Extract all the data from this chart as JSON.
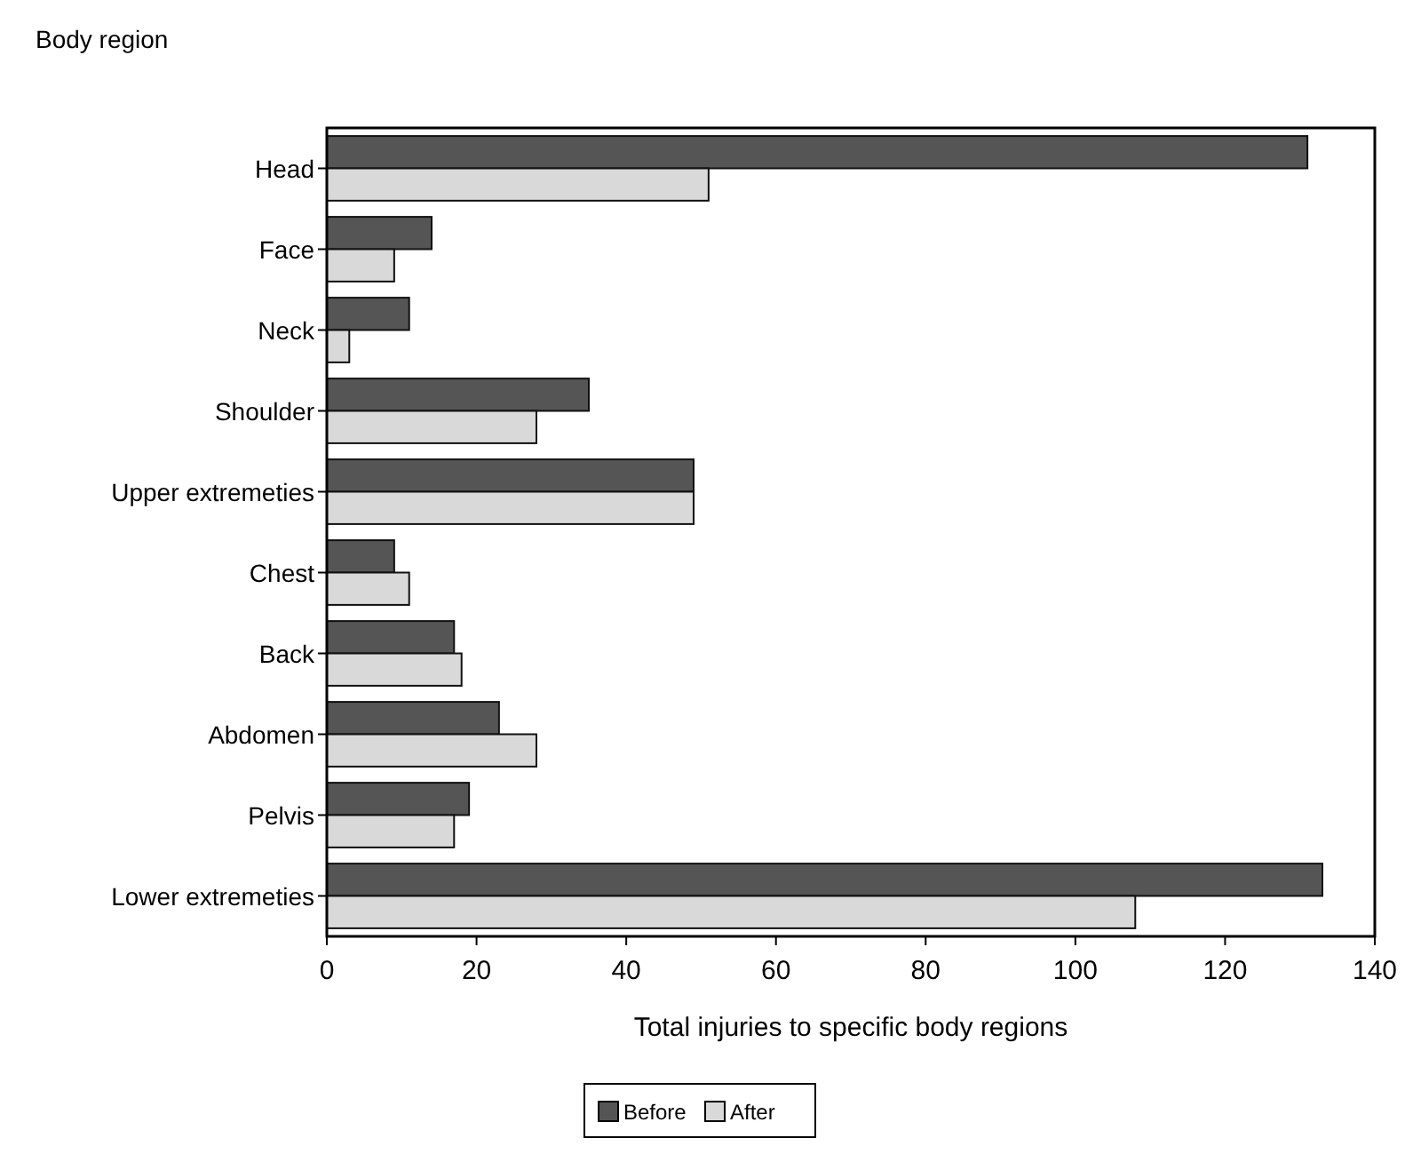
{
  "chart_data": {
    "type": "bar",
    "orientation": "horizontal",
    "ylabel": "Body region",
    "xlabel": "Total injuries to specific body regions",
    "categories": [
      "Head",
      "Face",
      "Neck",
      "Shoulder",
      "Upper extremeties",
      "Chest",
      "Back",
      "Abdomen",
      "Pelvis",
      "Lower extremeties"
    ],
    "series": [
      {
        "name": "Before",
        "color": "#555555",
        "values": [
          131,
          14,
          11,
          35,
          49,
          9,
          17,
          23,
          19,
          133
        ]
      },
      {
        "name": "After",
        "color": "#d9d9d9",
        "values": [
          51,
          9,
          3,
          28,
          49,
          11,
          18,
          28,
          17,
          108
        ]
      }
    ],
    "xlim": [
      0,
      140
    ],
    "xticks": [
      0,
      20,
      40,
      60,
      80,
      100,
      120,
      140
    ],
    "grid": false,
    "legend": "bottom"
  }
}
